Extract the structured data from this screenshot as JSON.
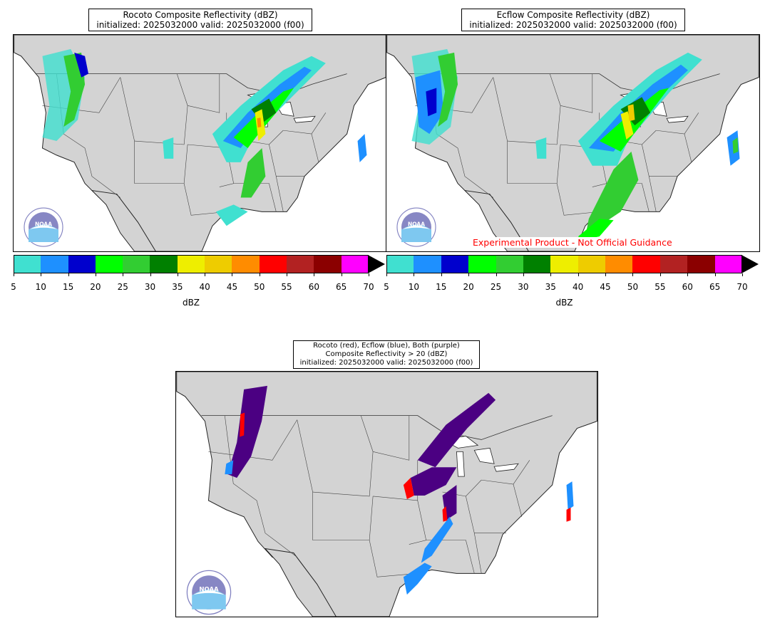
{
  "panels": {
    "rocoto": {
      "title_line1": "Rocoto Composite Reflectivity (dBZ)",
      "title_line2": "initialized: 2025032000 valid: 2025032000 (f00)"
    },
    "ecflow": {
      "title_line1": "Ecflow Composite Reflectivity (dBZ)",
      "title_line2": "initialized: 2025032000 valid: 2025032000 (f00)"
    },
    "compare": {
      "title_line1": "Rocoto (red), Ecflow (blue), Both (purple)",
      "title_line2": "Composite Reflectivity > 20 (dBZ)",
      "title_line3": "initialized: 2025032000 valid: 2025032000 (f00)"
    }
  },
  "watermark": "Experimental Product - Not Official Guidance",
  "colorbar": {
    "label": "dBZ",
    "ticks": [
      "5",
      "10",
      "15",
      "20",
      "25",
      "30",
      "35",
      "40",
      "45",
      "50",
      "55",
      "60",
      "65",
      "70"
    ],
    "colors": [
      "#40e0d0",
      "#1e90ff",
      "#0000cd",
      "#00ff00",
      "#32cd32",
      "#008000",
      "#eeee00",
      "#eecc00",
      "#ff8c00",
      "#ff0000",
      "#b22222",
      "#8b0000",
      "#ff00ff"
    ],
    "extend_color": "#000000"
  },
  "legend_colors": {
    "rocoto": "#ff0000",
    "ecflow": "#1e90ff",
    "both": "#4b0082"
  },
  "map_colors": {
    "land": "#d3d3d3",
    "ocean": "#ffffff",
    "borders": "#333333"
  },
  "logo": {
    "text": "NOAA",
    "ring_text": "NATIONAL OCEANIC AND ATMOSPHERIC ADMINISTRATION · U.S. DEPARTMENT OF COMMERCE"
  }
}
